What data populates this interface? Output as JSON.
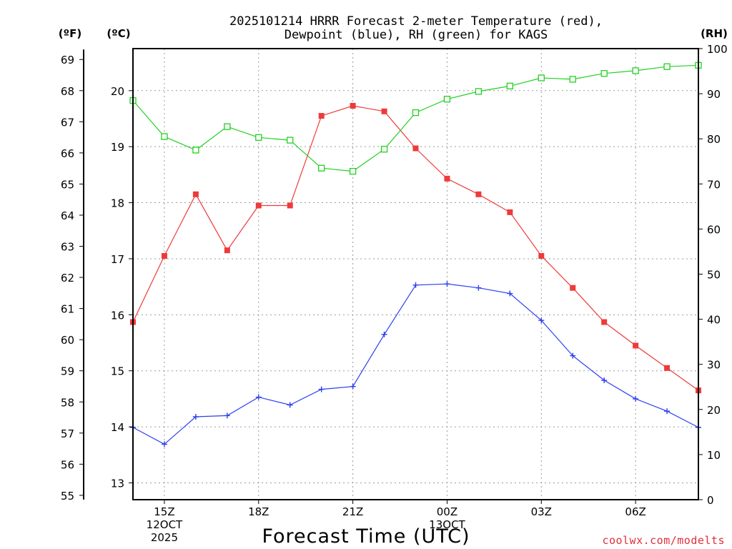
{
  "chart_data": {
    "type": "line",
    "title_lines": [
      "2025101214 HRRR Forecast 2-meter Temperature (red),",
      "Dewpoint (blue), RH (green) for KAGS"
    ],
    "xlabel": "Forecast Time (UTC)",
    "credit": "coolwx.com/modelts",
    "units": {
      "fahrenheit": "(ºF)",
      "celsius": "(ºC)",
      "rh": "(RH)"
    },
    "x_hours": [
      14,
      15,
      16,
      17,
      18,
      19,
      20,
      21,
      22,
      23,
      24,
      25,
      26,
      27,
      28,
      29,
      30,
      31,
      32
    ],
    "xlim": [
      14,
      32
    ],
    "x_ticks": [
      {
        "hour": 15,
        "lines": [
          "15Z",
          "12OCT",
          "2025"
        ]
      },
      {
        "hour": 18,
        "lines": [
          "18Z"
        ]
      },
      {
        "hour": 21,
        "lines": [
          "21Z"
        ]
      },
      {
        "hour": 24,
        "lines": [
          "00Z",
          "13OCT"
        ]
      },
      {
        "hour": 27,
        "lines": [
          "03Z"
        ]
      },
      {
        "hour": 30,
        "lines": [
          "06Z"
        ]
      }
    ],
    "celsius_axis": {
      "ylim": [
        12.7,
        20.75
      ],
      "ticks": [
        13,
        14,
        15,
        16,
        17,
        18,
        19,
        20
      ]
    },
    "fahrenheit_ticks": [
      55,
      56,
      57,
      58,
      59,
      60,
      61,
      62,
      63,
      64,
      65,
      66,
      67,
      68,
      69
    ],
    "rh_axis": {
      "ylim": [
        0,
        100
      ],
      "ticks": [
        0,
        10,
        20,
        30,
        40,
        50,
        60,
        70,
        80,
        90,
        100
      ]
    },
    "series": [
      {
        "name": "Temperature",
        "axis": "celsius",
        "color": "#ef3a3a",
        "marker": "filled-square",
        "values": [
          15.87,
          17.05,
          18.15,
          17.15,
          17.95,
          17.95,
          19.55,
          19.73,
          19.63,
          18.97,
          18.43,
          18.15,
          17.83,
          17.05,
          16.48,
          15.87,
          15.45,
          15.05,
          14.65
        ]
      },
      {
        "name": "Dewpoint",
        "axis": "celsius",
        "color": "#2a3ff0",
        "marker": "plus",
        "values": [
          13.99,
          13.69,
          14.18,
          14.2,
          14.53,
          14.39,
          14.67,
          14.72,
          15.65,
          16.53,
          16.55,
          16.48,
          16.38,
          15.9,
          15.27,
          14.83,
          14.5,
          14.28,
          13.99
        ]
      },
      {
        "name": "RH",
        "axis": "rh",
        "color": "#22d022",
        "marker": "open-square",
        "values": [
          88.5,
          80.5,
          77.5,
          82.7,
          80.3,
          79.7,
          73.5,
          72.8,
          77.7,
          85.8,
          88.8,
          90.5,
          91.7,
          93.5,
          93.2,
          94.5,
          95.1,
          96.0,
          96.3
        ]
      }
    ]
  }
}
